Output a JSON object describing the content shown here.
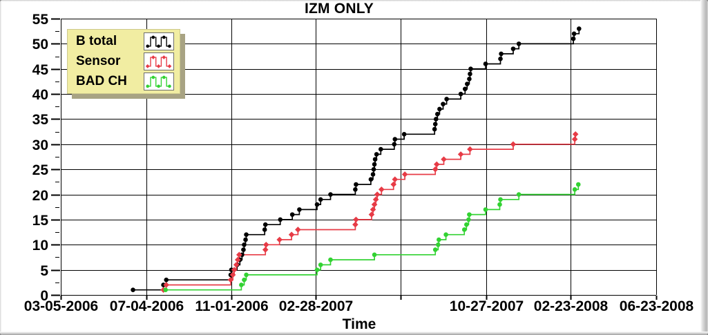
{
  "chart_data": {
    "type": "step-line",
    "title": "IZM ONLY",
    "xlabel": "Time",
    "background_color": "#ffffff",
    "grid_color": "#000000",
    "y_axis": {
      "min": 0,
      "max": 55,
      "tick_step": 5,
      "tick_labels": [
        "0",
        "5",
        "10",
        "15",
        "20",
        "25",
        "30",
        "35",
        "40",
        "45",
        "50",
        "55"
      ]
    },
    "x_axis": {
      "start_date": "03-05-2006",
      "end_date": "06-23-2008",
      "day_span": 841,
      "tick_day_offsets": [
        0,
        121,
        241,
        360,
        480,
        601,
        720,
        841
      ],
      "tick_labels": [
        "03-05-2006",
        "07-04-2006",
        "11-01-2006",
        "02-28-2007",
        "",
        "10-27-2007",
        "02-23-2008",
        "06-23-2008"
      ]
    },
    "legend": {
      "bg_color": "#f1eda2",
      "shadow_color": "#a8a383"
    },
    "series": [
      {
        "name": "B total",
        "color": "#000000",
        "marker": "circle",
        "points": [
          [
            102,
            1
          ],
          [
            145,
            2
          ],
          [
            149,
            3
          ],
          [
            240,
            4
          ],
          [
            241,
            5
          ],
          [
            249,
            6
          ],
          [
            253,
            7
          ],
          [
            256,
            8
          ],
          [
            258,
            9
          ],
          [
            259,
            10
          ],
          [
            261,
            11
          ],
          [
            262,
            12
          ],
          [
            288,
            13
          ],
          [
            289,
            14
          ],
          [
            310,
            15
          ],
          [
            327,
            16
          ],
          [
            337,
            17
          ],
          [
            362,
            18
          ],
          [
            367,
            19
          ],
          [
            381,
            20
          ],
          [
            416,
            21
          ],
          [
            417,
            22
          ],
          [
            438,
            23
          ],
          [
            441,
            24
          ],
          [
            442,
            25
          ],
          [
            443,
            26
          ],
          [
            444,
            27
          ],
          [
            446,
            28
          ],
          [
            452,
            29
          ],
          [
            471,
            30
          ],
          [
            472,
            31
          ],
          [
            485,
            32
          ],
          [
            528,
            33
          ],
          [
            529,
            34
          ],
          [
            530,
            35
          ],
          [
            532,
            36
          ],
          [
            535,
            37
          ],
          [
            540,
            38
          ],
          [
            545,
            39
          ],
          [
            565,
            40
          ],
          [
            571,
            41
          ],
          [
            574,
            42
          ],
          [
            577,
            43
          ],
          [
            578,
            44
          ],
          [
            579,
            45
          ],
          [
            600,
            46
          ],
          [
            621,
            47
          ],
          [
            622,
            48
          ],
          [
            639,
            49
          ],
          [
            647,
            50
          ],
          [
            724,
            51
          ],
          [
            725,
            52
          ],
          [
            732,
            53
          ]
        ]
      },
      {
        "name": "Sensor",
        "color": "#e73b46",
        "marker": "diamond",
        "points": [
          [
            145,
            1
          ],
          [
            149,
            2
          ],
          [
            240,
            3
          ],
          [
            243,
            4
          ],
          [
            245,
            5
          ],
          [
            248,
            6
          ],
          [
            250,
            7
          ],
          [
            252,
            8
          ],
          [
            289,
            9
          ],
          [
            290,
            10
          ],
          [
            309,
            11
          ],
          [
            326,
            12
          ],
          [
            335,
            13
          ],
          [
            416,
            14
          ],
          [
            417,
            15
          ],
          [
            439,
            16
          ],
          [
            441,
            17
          ],
          [
            443,
            18
          ],
          [
            445,
            19
          ],
          [
            447,
            20
          ],
          [
            453,
            21
          ],
          [
            470,
            22
          ],
          [
            472,
            23
          ],
          [
            486,
            24
          ],
          [
            529,
            25
          ],
          [
            531,
            26
          ],
          [
            541,
            27
          ],
          [
            565,
            28
          ],
          [
            578,
            29
          ],
          [
            639,
            30
          ],
          [
            726,
            31
          ],
          [
            727,
            32
          ]
        ]
      },
      {
        "name": "BAD CH",
        "color": "#32d232",
        "marker": "circle",
        "points": [
          [
            148,
            1
          ],
          [
            255,
            2
          ],
          [
            259,
            3
          ],
          [
            262,
            4
          ],
          [
            362,
            5
          ],
          [
            367,
            6
          ],
          [
            381,
            7
          ],
          [
            443,
            8
          ],
          [
            529,
            9
          ],
          [
            533,
            10
          ],
          [
            534,
            11
          ],
          [
            544,
            12
          ],
          [
            570,
            13
          ],
          [
            573,
            14
          ],
          [
            576,
            15
          ],
          [
            577,
            16
          ],
          [
            600,
            17
          ],
          [
            620,
            18
          ],
          [
            621,
            19
          ],
          [
            647,
            20
          ],
          [
            726,
            21
          ],
          [
            731,
            22
          ]
        ]
      }
    ]
  }
}
